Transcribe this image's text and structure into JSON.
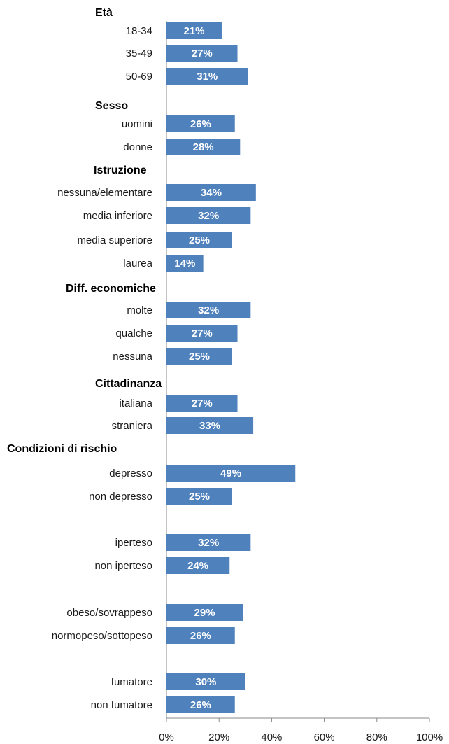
{
  "chart_data": {
    "type": "bar",
    "orientation": "horizontal",
    "bar_color": "#4F81BD",
    "value_label_color": "#FFFFFF",
    "xlim": [
      0,
      100
    ],
    "x_ticks": [
      "0%",
      "20%",
      "40%",
      "60%",
      "80%",
      "100%"
    ],
    "groups": [
      {
        "name": "Età",
        "items": [
          {
            "label": "18-34",
            "value": 21,
            "value_label": "21%"
          },
          {
            "label": "35-49",
            "value": 27,
            "value_label": "27%"
          },
          {
            "label": "50-69",
            "value": 31,
            "value_label": "31%"
          }
        ]
      },
      {
        "name": "Sesso",
        "items": [
          {
            "label": "uomini",
            "value": 26,
            "value_label": "26%"
          },
          {
            "label": "donne",
            "value": 28,
            "value_label": "28%"
          }
        ]
      },
      {
        "name": "Istruzione",
        "items": [
          {
            "label": "nessuna/elementare",
            "value": 34,
            "value_label": "34%"
          },
          {
            "label": "media inferiore",
            "value": 32,
            "value_label": "32%"
          },
          {
            "label": "media superiore",
            "value": 25,
            "value_label": "25%"
          },
          {
            "label": "laurea",
            "value": 14,
            "value_label": "14%"
          }
        ]
      },
      {
        "name": "Diff. economiche",
        "items": [
          {
            "label": "molte",
            "value": 32,
            "value_label": "32%"
          },
          {
            "label": "qualche",
            "value": 27,
            "value_label": "27%"
          },
          {
            "label": "nessuna",
            "value": 25,
            "value_label": "25%"
          }
        ]
      },
      {
        "name": "Cittadinanza",
        "items": [
          {
            "label": "italiana",
            "value": 27,
            "value_label": "27%"
          },
          {
            "label": "straniera",
            "value": 33,
            "value_label": "33%"
          }
        ]
      },
      {
        "name": "Condizioni di rischio",
        "items": [
          {
            "label": "depresso",
            "value": 49,
            "value_label": "49%"
          },
          {
            "label": "non depresso",
            "value": 25,
            "value_label": "25%"
          },
          {
            "label": "iperteso",
            "value": 32,
            "value_label": "32%"
          },
          {
            "label": "non iperteso",
            "value": 24,
            "value_label": "24%"
          },
          {
            "label": "obeso/sovrappeso",
            "value": 29,
            "value_label": "29%"
          },
          {
            "label": "normopeso/sottopeso",
            "value": 26,
            "value_label": "26%"
          },
          {
            "label": "fumatore",
            "value": 30,
            "value_label": "30%"
          },
          {
            "label": "non fumatore",
            "value": 26,
            "value_label": "26%"
          }
        ]
      }
    ]
  }
}
